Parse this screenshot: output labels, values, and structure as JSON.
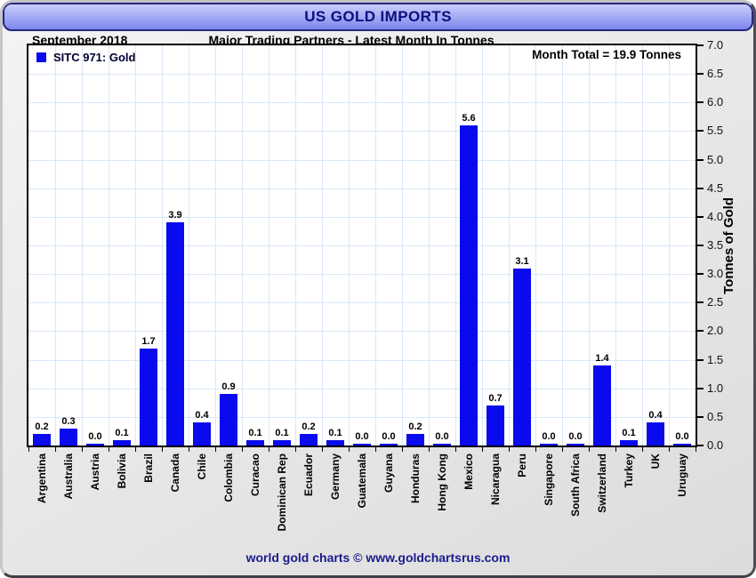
{
  "header": {
    "title": "US GOLD IMPORTS",
    "date": "September 2018",
    "subtitle": "Major Trading Partners - Latest Month In Tonnes"
  },
  "legend": {
    "label": "SITC 971: Gold"
  },
  "annotation": {
    "month_total": "Month Total = 19.9 Tonnes"
  },
  "footer": {
    "credit": "world gold charts © www.goldchartsrus.com"
  },
  "colors": {
    "bar": "#0a0aee",
    "grid": "#d9e7f6",
    "accent_navy": "#1b1b8e"
  },
  "chart_data": {
    "type": "bar",
    "title": "US GOLD IMPORTS",
    "subtitle": "Major Trading Partners - Latest Month In Tonnes",
    "period": "September 2018",
    "series_name": "SITC 971: Gold",
    "month_total_tonnes": 19.9,
    "categories": [
      "Argentina",
      "Australia",
      "Austria",
      "Bolivia",
      "Brazil",
      "Canada",
      "Chile",
      "Colombia",
      "Curacao",
      "Dominican Rep",
      "Ecuador",
      "Germany",
      "Guatemala",
      "Guyana",
      "Honduras",
      "Hong Kong",
      "Mexico",
      "Nicaragua",
      "Peru",
      "Singapore",
      "South Africa",
      "Switzerland",
      "Turkey",
      "UK",
      "Uruguay"
    ],
    "values": [
      0.2,
      0.3,
      0.0,
      0.1,
      1.7,
      3.9,
      0.4,
      0.9,
      0.1,
      0.1,
      0.2,
      0.1,
      0.0,
      0.0,
      0.2,
      0.0,
      5.6,
      0.7,
      3.1,
      0.0,
      0.0,
      1.4,
      0.1,
      0.4,
      0.0
    ],
    "xlabel": "",
    "ylabel": "Tonnes of Gold",
    "ylim": [
      0,
      7
    ],
    "ytick_step": 0.5,
    "grid": true,
    "legend_position": "top-left",
    "value_labels_shown": true
  }
}
